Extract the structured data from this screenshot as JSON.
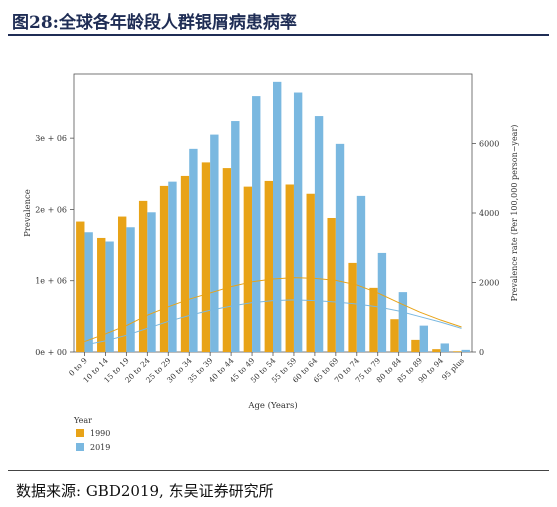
{
  "header": {
    "figure_label": "图28:",
    "title": "全球各年龄段人群银屑病患病率"
  },
  "footer": {
    "source": "数据来源: GBD2019, 东吴证券研究所"
  },
  "colors": {
    "series_1990": "#e8a317",
    "series_2019": "#7ab8e0",
    "title_color": "#1f2d55"
  },
  "chart_data": {
    "type": "bar",
    "xlabel": "Age (Years)",
    "ylabel": "Prevalence",
    "y2label": "Prevalence rate (Per 100,000 person−year)",
    "ylim": [
      0,
      3900000
    ],
    "y2lim": [
      0,
      8000
    ],
    "yticks": [
      0,
      1000000,
      2000000,
      3000000
    ],
    "ytick_labels": [
      "0e + 00",
      "1e + 06",
      "2e + 06",
      "3e + 06"
    ],
    "y2ticks": [
      0,
      2000,
      4000,
      6000
    ],
    "y2tick_labels": [
      "0",
      "2000",
      "4000",
      "6000"
    ],
    "categories": [
      "0 to 9",
      "10 to 14",
      "15 to 19",
      "20 to 24",
      "25 to 29",
      "30 to 34",
      "35 to 39",
      "40 to 44",
      "45 to 49",
      "50 to 54",
      "55 to 59",
      "60 to 64",
      "65 to 69",
      "70 to 74",
      "75 to 79",
      "80 to 84",
      "85 to 89",
      "90 to 94",
      "95 plus"
    ],
    "legend_title": "Year",
    "legend_position": "bottom-left",
    "series": [
      {
        "name": "1990",
        "color": "#e8a317",
        "values": [
          1830000,
          1600000,
          1900000,
          2120000,
          2330000,
          2470000,
          2660000,
          2580000,
          2320000,
          2400000,
          2350000,
          2220000,
          1880000,
          1250000,
          900000,
          460000,
          170000,
          40000,
          10000
        ],
        "rate": [
          300,
          520,
          760,
          1060,
          1300,
          1520,
          1700,
          1880,
          2020,
          2100,
          2140,
          2120,
          2060,
          1930,
          1700,
          1420,
          1150,
          920,
          720
        ]
      },
      {
        "name": "2019",
        "color": "#7ab8e0",
        "values": [
          1680000,
          1550000,
          1750000,
          1960000,
          2390000,
          2850000,
          3050000,
          3240000,
          3590000,
          3790000,
          3640000,
          3310000,
          2920000,
          2190000,
          1390000,
          840000,
          370000,
          120000,
          30000
        ],
        "rate": [
          200,
          320,
          480,
          680,
          880,
          1050,
          1200,
          1320,
          1420,
          1480,
          1500,
          1480,
          1440,
          1380,
          1300,
          1180,
          1020,
          860,
          680
        ]
      }
    ]
  }
}
